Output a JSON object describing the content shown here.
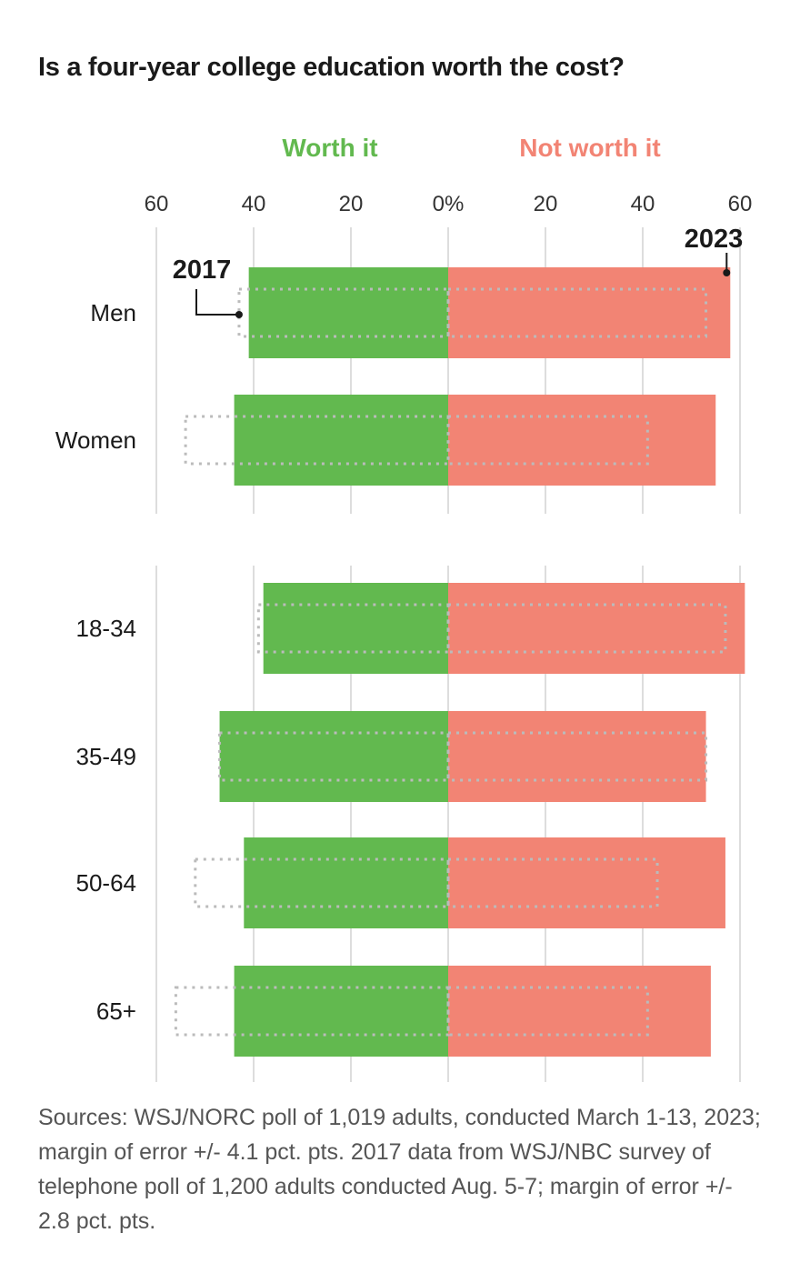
{
  "title": "Is a four-year college education worth the cost?",
  "legend": {
    "left": "Worth it",
    "right": "Not worth it"
  },
  "source": "Sources: WSJ/NORC poll of 1,019 adults, conducted March 1-13, 2023; margin of error +/- 4.1 pct. pts. 2017 data from WSJ/NBC survey of telephone poll of 1,200 adults conducted Aug. 5-7; margin of error +/- 2.8 pct. pts.",
  "colors": {
    "worth": "#62b94f",
    "not_worth": "#f28474",
    "outline_2017": "#bbbbbb",
    "grid": "#dddddd",
    "text": "#1a1a1a"
  },
  "chart_data": {
    "type": "bar",
    "orientation": "horizontal-diverging",
    "title": "Is a four-year college education worth the cost?",
    "xlim": [
      -60,
      60
    ],
    "ticks": [
      {
        "value": -60,
        "label": "60"
      },
      {
        "value": -40,
        "label": "40"
      },
      {
        "value": -20,
        "label": "20"
      },
      {
        "value": 0,
        "label": "0%"
      },
      {
        "value": 20,
        "label": "20"
      },
      {
        "value": 40,
        "label": "40"
      },
      {
        "value": 60,
        "label": "60"
      }
    ],
    "series": [
      {
        "name": "Worth it",
        "year": "2023",
        "values": [
          41,
          44,
          38,
          47,
          42,
          44
        ]
      },
      {
        "name": "Not worth it",
        "year": "2023",
        "values": [
          58,
          55,
          61,
          53,
          57,
          54
        ]
      },
      {
        "name": "Worth it",
        "year": "2017",
        "values": [
          43,
          54,
          39,
          47,
          52,
          56
        ]
      },
      {
        "name": "Not worth it",
        "year": "2017",
        "values": [
          53,
          41,
          57,
          53,
          43,
          41
        ]
      }
    ],
    "groups": [
      {
        "categories": [
          "Men",
          "Women"
        ]
      },
      {
        "categories": [
          "18-34",
          "35-49",
          "50-64",
          "65+"
        ]
      }
    ],
    "annotations": [
      {
        "text": "2017",
        "category": "Men",
        "side": "left"
      },
      {
        "text": "2023",
        "category": "Men",
        "side": "right"
      }
    ],
    "grid": true
  }
}
